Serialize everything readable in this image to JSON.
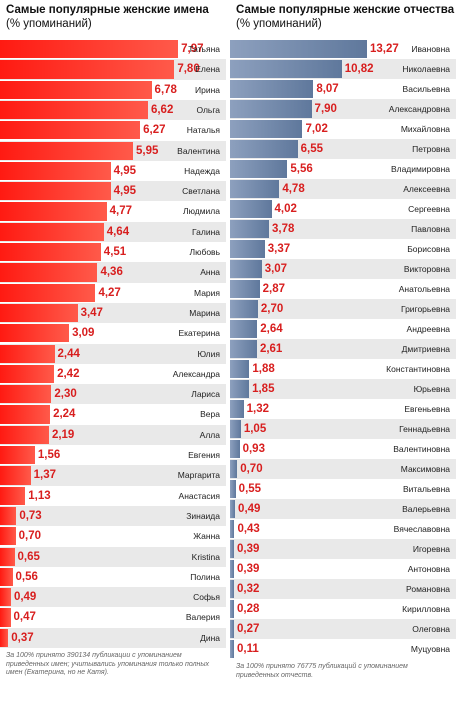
{
  "chart_data": [
    {
      "type": "bar",
      "title": "Самые популярные женские имена",
      "subtitle": "(% упоминаний)",
      "categories": [
        "Татьяна",
        "Елена",
        "Ирина",
        "Ольга",
        "Наталья",
        "Валентина",
        "Надежда",
        "Светлана",
        "Людмила",
        "Галина",
        "Любовь",
        "Анна",
        "Мария",
        "Марина",
        "Екатерина",
        "Юлия",
        "Александра",
        "Лариса",
        "Вера",
        "Алла",
        "Евгения",
        "Маргарита",
        "Анастасия",
        "Зинаида",
        "Жанна",
        "Kristina",
        "Полина",
        "Софья",
        "Валерия",
        "Дина"
      ],
      "values": [
        7.97,
        7.8,
        6.78,
        6.62,
        6.27,
        5.95,
        4.95,
        4.95,
        4.77,
        4.64,
        4.51,
        4.36,
        4.27,
        3.47,
        3.09,
        2.44,
        2.42,
        2.3,
        2.24,
        2.19,
        1.56,
        1.37,
        1.13,
        0.73,
        0.7,
        0.65,
        0.56,
        0.49,
        0.47,
        0.37
      ],
      "labels": [
        "7,97",
        "7,80",
        "6,78",
        "6,62",
        "6,27",
        "5,95",
        "4,95",
        "4,95",
        "4,77",
        "4,64",
        "4,51",
        "4,36",
        "4,27",
        "3,47",
        "3,09",
        "2,44",
        "2,42",
        "2,30",
        "2,24",
        "2,19",
        "1,56",
        "1,37",
        "1,13",
        "0,73",
        "0,70",
        "0,65",
        "0,56",
        "0,49",
        "0,47",
        "0,37"
      ],
      "note": "За 100% принято 390134 публикации с упоминанием приведенных имен; учитывались упоминания только полных имен (Екатерина, но не Катя).",
      "color": "#ff2a1f"
    },
    {
      "type": "bar",
      "title": "Самые популярные женские отчества",
      "subtitle": "(% упоминаний)",
      "categories": [
        "Ивановна",
        "Николаевна",
        "Васильевна",
        "Александровна",
        "Михайловна",
        "Петровна",
        "Владимировна",
        "Алексеевна",
        "Сергеевна",
        "Павловна",
        "Борисовна",
        "Викторовна",
        "Анатольевна",
        "Григорьевна",
        "Андреевна",
        "Дмитриевна",
        "Константиновна",
        "Юрьевна",
        "Евгеньевна",
        "Геннадьевна",
        "Валентиновна",
        "Максимовна",
        "Витальевна",
        "Валерьевна",
        "Вячеславовна",
        "Игоревна",
        "Антоновна",
        "Романовна",
        "Кирилловна",
        "Олеговна",
        "Муцуовна"
      ],
      "values": [
        13.27,
        10.82,
        8.07,
        7.9,
        7.02,
        6.55,
        5.56,
        4.78,
        4.02,
        3.78,
        3.37,
        3.07,
        2.87,
        2.7,
        2.64,
        2.61,
        1.88,
        1.85,
        1.32,
        1.05,
        0.93,
        0.7,
        0.55,
        0.49,
        0.43,
        0.39,
        0.39,
        0.32,
        0.28,
        0.27,
        0.11
      ],
      "labels": [
        "13,27",
        "10,82",
        "8,07",
        "7,90",
        "7,02",
        "6,55",
        "5,56",
        "4,78",
        "4,02",
        "3,78",
        "3,37",
        "3,07",
        "2,87",
        "2,70",
        "2,64",
        "2,61",
        "1,88",
        "1,85",
        "1,32",
        "1,05",
        "0,93",
        "0,70",
        "0,55",
        "0,49",
        "0,43",
        "0,39",
        "0,39",
        "0,32",
        "0,28",
        "0,27",
        "0,11"
      ],
      "note": "За 100% принято 76775 публикаций с упоминанием приведенных отчеств.",
      "color": "#6f86a8"
    }
  ]
}
